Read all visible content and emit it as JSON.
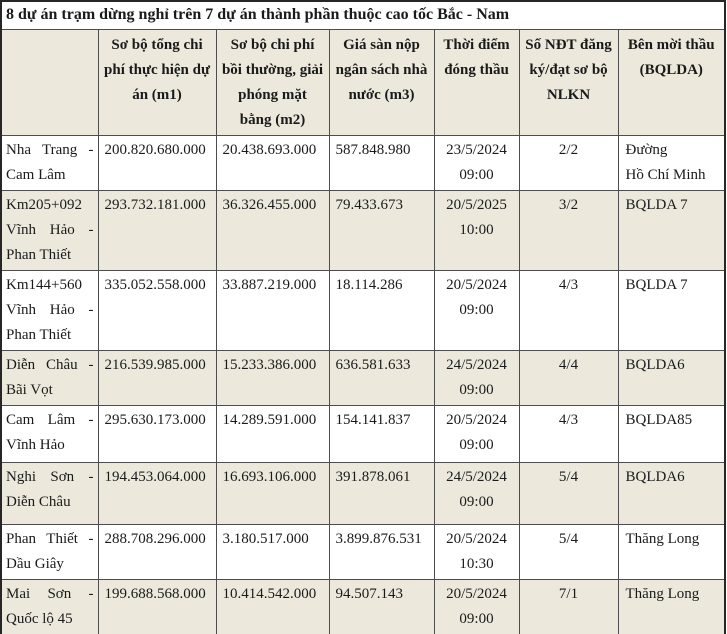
{
  "page": {
    "title": "8 dự án trạm dừng nghỉ trên 7 dự án thành phần thuộc cao tốc Bắc - Nam"
  },
  "table": {
    "columns": [
      "",
      "Sơ bộ tổng chi phí thực hiện dự án (m1)",
      "Sơ bộ chi phí bồi thường, giải phóng mặt bằng (m2)",
      "Giá sàn nộp ngân sách nhà nước (m3)",
      "Thời điểm đóng thầu",
      "Số NĐT đăng ký/đạt sơ bộ NLKN",
      "Bên mời thầu (BQLDA)"
    ],
    "rows": [
      {
        "route": "Nha Trang - Cam Lâm",
        "m1": "200.820.680.000",
        "m2": "20.438.693.000",
        "m3": "587.848.980",
        "date": "23/5/2024",
        "time": "09:00",
        "ndt": "2/2",
        "bqlda": "Đường\nHồ Chí Minh"
      },
      {
        "route": "Km205+092 Vĩnh Hảo - Phan Thiết",
        "m1": "293.732.181.000",
        "m2": "36.326.455.000",
        "m3": "79.433.673",
        "date": "20/5/2025",
        "time": "10:00",
        "ndt": "3/2",
        "bqlda": "BQLDA 7"
      },
      {
        "route": "Km144+560 Vĩnh Hảo - Phan Thiết",
        "m1": "335.052.558.000",
        "m2": "33.887.219.000",
        "m3": "18.114.286",
        "date": "20/5/2024",
        "time": "09:00",
        "ndt": "4/3",
        "bqlda": "BQLDA 7"
      },
      {
        "route": "Diễn Châu - Bãi Vọt",
        "m1": "216.539.985.000",
        "m2": "15.233.386.000",
        "m3": "636.581.633",
        "date": "24/5/2024",
        "time": "09:00",
        "ndt": "4/4",
        "bqlda": "BQLDA6"
      },
      {
        "route": "Cam Lâm - Vĩnh Hảo",
        "m1": "295.630.173.000",
        "m2": "14.289.591.000",
        "m3": "154.141.837",
        "date": "20/5/2024",
        "time": "09:00",
        "ndt": "4/3",
        "bqlda": "BQLDA85"
      },
      {
        "route": "Nghi Sơn - Diễn Châu",
        "m1": "194.453.064.000",
        "m2": "16.693.106.000",
        "m3": "391.878.061",
        "date": "24/5/2024",
        "time": "09:00",
        "ndt": "5/4",
        "bqlda": "BQLDA6"
      },
      {
        "route": "Phan Thiết - Dầu Giây",
        "m1": "288.708.296.000",
        "m2": "3.180.517.000",
        "m3": "3.899.876.531",
        "date": "20/5/2024",
        "time": "10:30",
        "ndt": "5/4",
        "bqlda": "Thăng Long"
      },
      {
        "route": "Mai Sơn - Quốc lộ 45",
        "m1": "199.688.568.000",
        "m2": "10.414.542.000",
        "m3": "94.507.143",
        "date": "20/5/2024",
        "time": "09:00",
        "ndt": "7/1",
        "bqlda": "Thăng Long"
      }
    ]
  },
  "colors": {
    "shade_bg": "#ece9dc",
    "border_inner": "#4d4d4d",
    "border_outer": "#262626",
    "text": "#1a1a1a"
  }
}
